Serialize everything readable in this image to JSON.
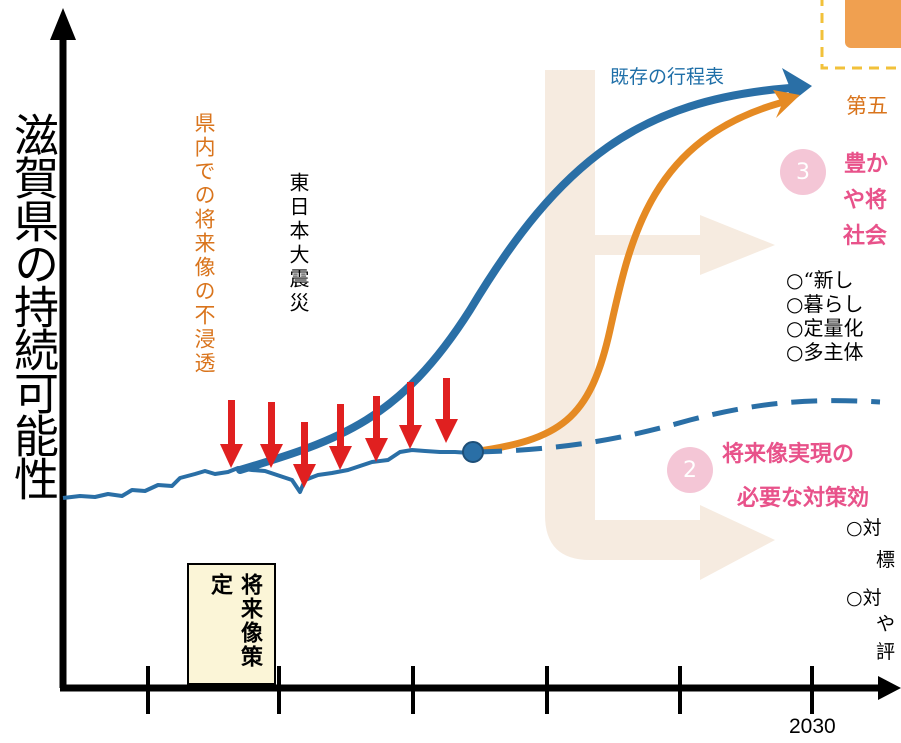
{
  "y_axis_label": "滋賀県の持続可能性",
  "x_axis_tick_label": "2030",
  "existing_roadmap_label": "既存の行程表",
  "annotation_vision_not_spread": "県内での将来像の不浸透",
  "annotation_great_earthquake": "東日本大震災",
  "vision_formulation_box": "将来像策定",
  "fifth_partial": "第五",
  "item3": {
    "number": "3",
    "heading_lines": [
      "豊か",
      "や将",
      "社会"
    ]
  },
  "item3_bullets": [
    "○“新し",
    "○暮らし",
    "○定量化",
    "○多主体"
  ],
  "item2": {
    "number": "2",
    "heading_lines": [
      "将来像実現の",
      "必要な対策効"
    ]
  },
  "item2_bullets": [
    "○対",
    "標",
    "○対",
    "や",
    "評"
  ],
  "colors": {
    "axis": "#000000",
    "blue": "#2a6fa6",
    "orange": "#e58a23",
    "red_arrow": "#e02020",
    "pink": "#e8528a",
    "pink_circle": "#f4c6d6",
    "dark_orange_text": "#d9741c",
    "big_arrow_fill": "#f6ebe0",
    "box_fill": "#fbf5d7",
    "dashed_box": "#f2c13a",
    "orange_block": "#f0a050"
  }
}
